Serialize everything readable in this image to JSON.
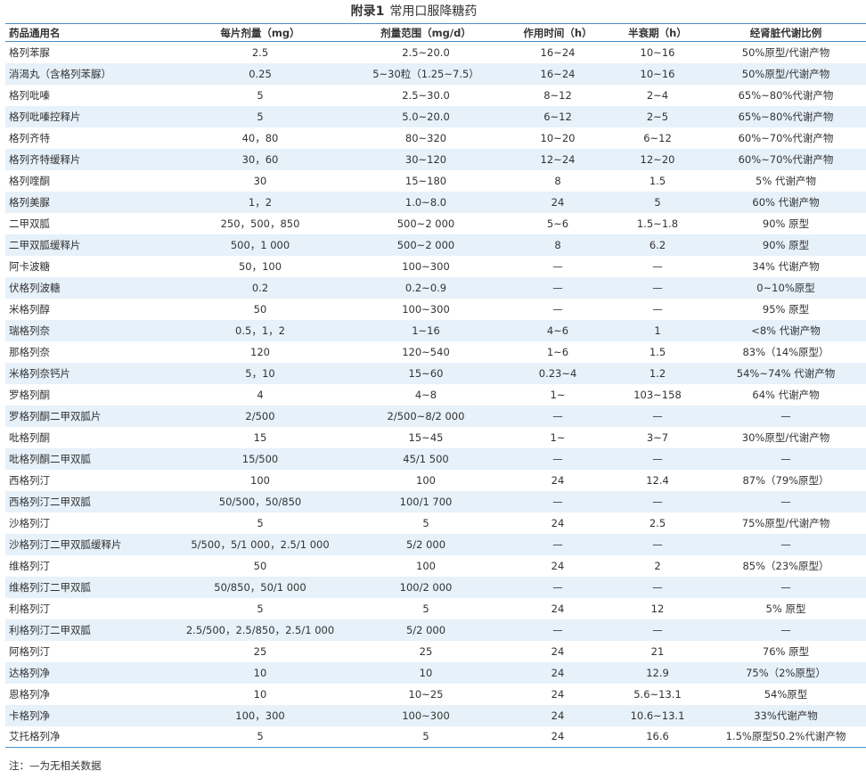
{
  "title": {
    "prefix": "附录1",
    "text": "常用口服降糖药"
  },
  "table": {
    "headers": [
      "药品通用名",
      "每片剂量（mg）",
      "剂量范围（mg/d）",
      "作用时间（h）",
      "半衰期（h）",
      "经肾脏代谢比例"
    ],
    "rows": [
      [
        "格列苯脲",
        "2.5",
        "2.5~20.0",
        "16~24",
        "10~16",
        "50%原型/代谢产物"
      ],
      [
        "消渴丸（含格列苯脲）",
        "0.25",
        "5~30粒（1.25~7.5）",
        "16~24",
        "10~16",
        "50%原型/代谢产物"
      ],
      [
        "格列吡嗪",
        "5",
        "2.5~30.0",
        "8~12",
        "2~4",
        "65%~80%代谢产物"
      ],
      [
        "格列吡嗪控释片",
        "5",
        "5.0~20.0",
        "6~12",
        "2~5",
        "65%~80%代谢产物"
      ],
      [
        "格列齐特",
        "40，80",
        "80~320",
        "10~20",
        "6~12",
        "60%~70%代谢产物"
      ],
      [
        "格列齐特缓释片",
        "30，60",
        "30~120",
        "12~24",
        "12~20",
        "60%~70%代谢产物"
      ],
      [
        "格列喹酮",
        "30",
        "15~180",
        "8",
        "1.5",
        "5% 代谢产物"
      ],
      [
        "格列美脲",
        "1，2",
        "1.0~8.0",
        "24",
        "5",
        "60% 代谢产物"
      ],
      [
        "二甲双胍",
        "250，500，850",
        "500~2 000",
        "5~6",
        "1.5~1.8",
        "90% 原型"
      ],
      [
        "二甲双胍缓释片",
        "500，1 000",
        "500~2 000",
        "8",
        "6.2",
        "90% 原型"
      ],
      [
        "阿卡波糖",
        "50，100",
        "100~300",
        "—",
        "—",
        "34% 代谢产物"
      ],
      [
        "伏格列波糖",
        "0.2",
        "0.2~0.9",
        "—",
        "—",
        "0~10%原型"
      ],
      [
        "米格列醇",
        "50",
        "100~300",
        "—",
        "—",
        "95% 原型"
      ],
      [
        "瑞格列奈",
        "0.5，1，2",
        "1~16",
        "4~6",
        "1",
        "<8% 代谢产物"
      ],
      [
        "那格列奈",
        "120",
        "120~540",
        "1~6",
        "1.5",
        "83%（14%原型）"
      ],
      [
        "米格列奈钙片",
        "5，10",
        "15~60",
        "0.23~4",
        "1.2",
        "54%~74% 代谢产物"
      ],
      [
        "罗格列酮",
        "4",
        "4~8",
        "1~",
        "103~158",
        "64% 代谢产物"
      ],
      [
        "罗格列酮二甲双胍片",
        "2/500",
        "2/500~8/2 000",
        "—",
        "—",
        "—"
      ],
      [
        "吡格列酮",
        "15",
        "15~45",
        "1~",
        "3~7",
        "30%原型/代谢产物"
      ],
      [
        "吡格列酮二甲双胍",
        "15/500",
        "45/1 500",
        "—",
        "—",
        "—"
      ],
      [
        "西格列汀",
        "100",
        "100",
        "24",
        "12.4",
        "87%（79%原型）"
      ],
      [
        "西格列汀二甲双胍",
        "50/500，50/850",
        "100/1 700",
        "—",
        "—",
        "—"
      ],
      [
        "沙格列汀",
        "5",
        "5",
        "24",
        "2.5",
        "75%原型/代谢产物"
      ],
      [
        "沙格列汀二甲双胍缓释片",
        "5/500，5/1 000，2.5/1 000",
        "5/2 000",
        "—",
        "—",
        "—"
      ],
      [
        "维格列汀",
        "50",
        "100",
        "24",
        "2",
        "85%（23%原型）"
      ],
      [
        "维格列汀二甲双胍",
        "50/850，50/1 000",
        "100/2 000",
        "—",
        "—",
        "—"
      ],
      [
        "利格列汀",
        "5",
        "5",
        "24",
        "12",
        "5% 原型"
      ],
      [
        "利格列汀二甲双胍",
        "2.5/500，2.5/850，2.5/1 000",
        "5/2 000",
        "—",
        "—",
        "—"
      ],
      [
        "阿格列汀",
        "25",
        "25",
        "24",
        "21",
        "76% 原型"
      ],
      [
        "达格列净",
        "10",
        "10",
        "24",
        "12.9",
        "75%（2%原型）"
      ],
      [
        "恩格列净",
        "10",
        "10~25",
        "24",
        "5.6~13.1",
        "54%原型"
      ],
      [
        "卡格列净",
        "100，300",
        "100~300",
        "24",
        "10.6~13.1",
        "33%代谢产物"
      ],
      [
        "艾托格列净",
        "5",
        "5",
        "24",
        "16.6",
        "1.5%原型50.2%代谢产物"
      ]
    ]
  },
  "note": "注：—为无相关数据",
  "colors": {
    "accent": "#4a90c8",
    "stripe": "#e6f1fa",
    "text": "#333333"
  }
}
